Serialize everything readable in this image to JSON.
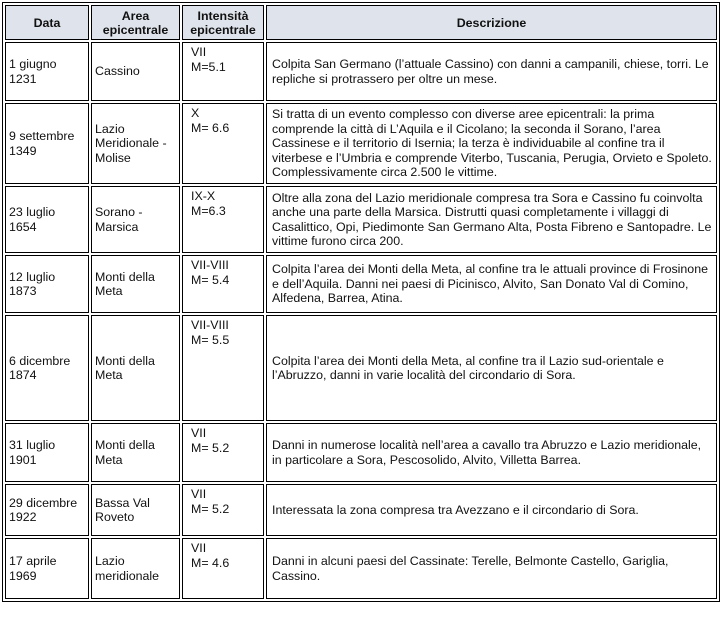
{
  "headers": {
    "data": "Data",
    "area": "Area epicentrale",
    "intensita": "Intensità epicentrale",
    "descrizione": "Descrizione"
  },
  "rows": [
    {
      "data": "1 giugno 1231",
      "area": "Cassino",
      "intensita": "VII",
      "magnitudo": "M=5.1",
      "descrizione": "Colpita San Germano (l’attuale Cassino) con danni a campanili, chiese, torri. Le repliche si protrassero per oltre un mese."
    },
    {
      "data": "9 settembre 1349",
      "area": "Lazio Meridionale - Molise",
      "intensita": "X",
      "magnitudo": "M= 6.6",
      "descrizione": "Si tratta di un evento complesso con diverse aree epicentrali: la prima comprende la città di L’Aquila e il Cicolano; la seconda il Sorano, l’area Cassinese e il territorio di Isernia; la terza è individuabile al confine tra il viterbese e l’Umbria e comprende Viterbo, Tuscania, Perugia, Orvieto e Spoleto. Complessivamente circa 2.500 le vittime."
    },
    {
      "data": "23 luglio 1654",
      "area": "Sorano - Marsica",
      "intensita": "IX-X",
      "magnitudo": "M=6.3",
      "descrizione": "Oltre alla zona del Lazio meridionale compresa tra Sora e Cassino fu coinvolta anche una parte della Marsica. Distrutti quasi completamente i villaggi di Casalittico, Opi, Piedimonte San Germano Alta, Posta Fibreno e Santopadre. Le vittime furono circa 200."
    },
    {
      "data": "12 luglio 1873",
      "area": "Monti della Meta",
      "intensita": "VII-VIII",
      "magnitudo": "M= 5.4",
      "descrizione": "Colpita l’area dei Monti della Meta, al confine tra le attuali province di Frosinone e dell’Aquila. Danni nei paesi di Picinisco, Alvito, San Donato Val di Comino, Alfedena, Barrea, Atina."
    },
    {
      "data": "6 dicembre 1874",
      "area": "Monti della Meta",
      "intensita": "VII-VIII",
      "magnitudo": "M= 5.5",
      "descrizione": "Colpita l’area dei Monti della Meta, al confine tra il Lazio sud-orientale e l’Abruzzo, danni in varie località del circondario di Sora."
    },
    {
      "data": "31 luglio 1901",
      "area": "Monti della Meta",
      "intensita": "VII",
      "magnitudo": "M= 5.2",
      "descrizione": "Danni in numerose località nell’area a cavallo tra Abruzzo e Lazio meridionale, in particolare a Sora, Pescosolido, Alvito, Villetta Barrea."
    },
    {
      "data": "29 dicembre 1922",
      "area": "Bassa Val Roveto",
      "intensita": "VII",
      "magnitudo": "M= 5.2",
      "descrizione": "Interessata la zona compresa tra Avezzano e il circondario di Sora."
    },
    {
      "data": "17 aprile 1969",
      "area": "Lazio meridionale",
      "intensita": "VII",
      "magnitudo": "M= 4.6",
      "descrizione": "Danni in alcuni paesi del Cassinate: Terelle, Belmonte Castello, Gariglia, Cassino."
    }
  ]
}
